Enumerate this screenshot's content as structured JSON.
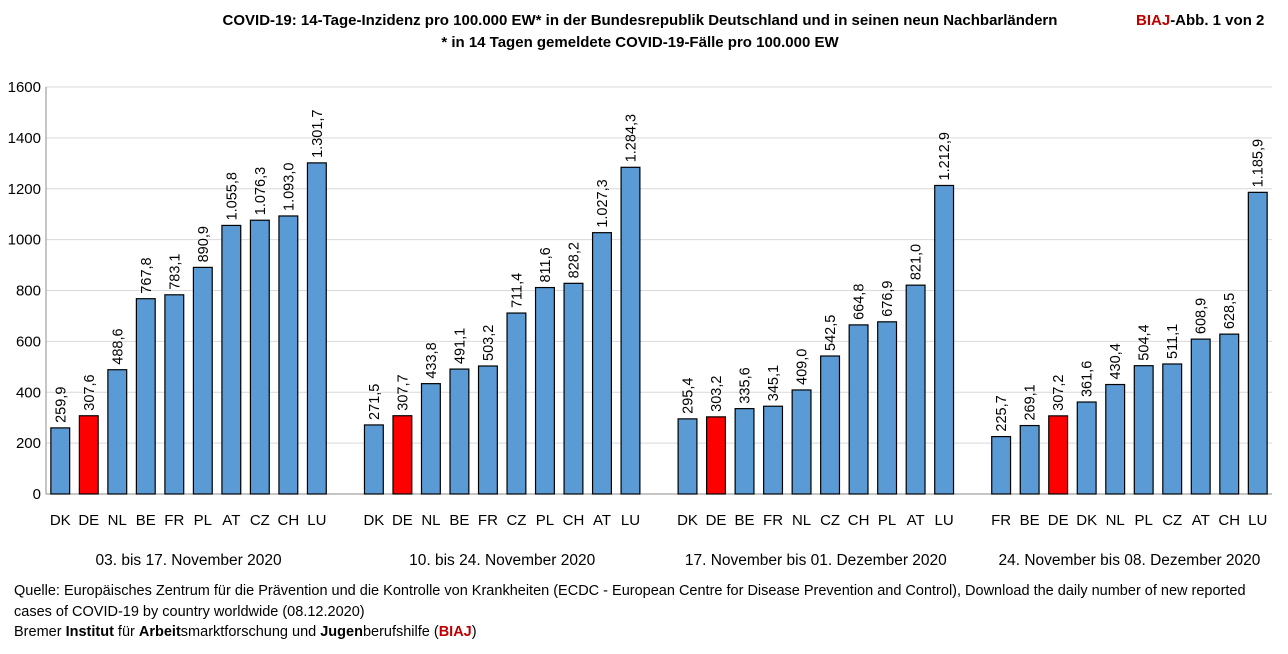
{
  "header": {
    "title_line1": "COVID-19: 14-Tage-Inzidenz pro 100.000 EW* in der Bundesrepublik Deutschland und in seinen neun Nachbarländern",
    "title_line2": "* in 14 Tagen gemeldete COVID-19-Fälle pro 100.000 EW",
    "badge_brand": "BIAJ",
    "badge_rest": "-Abb. 1 von 2"
  },
  "colors": {
    "bar": "#5b9bd5",
    "highlight": "#ff0000",
    "brand": "#c00000"
  },
  "chart_data": {
    "type": "bar",
    "title": "COVID-19: 14-Tage-Inzidenz pro 100.000 EW* in der Bundesrepublik Deutschland und in seinen neun Nachbarländern",
    "ylim": [
      0,
      1600
    ],
    "yticks": [
      0,
      200,
      400,
      600,
      800,
      1000,
      1200,
      1400,
      1600
    ],
    "grid": true,
    "highlight_category": "DE",
    "groups": [
      {
        "period": "03. bis 17. November 2020",
        "categories": [
          "DK",
          "DE",
          "NL",
          "BE",
          "FR",
          "PL",
          "AT",
          "CZ",
          "CH",
          "LU"
        ],
        "values": [
          259.9,
          307.6,
          488.6,
          767.8,
          783.1,
          890.9,
          1055.8,
          1076.3,
          1093.0,
          1301.7
        ],
        "labels": [
          "259,9",
          "307,6",
          "488,6",
          "767,8",
          "783,1",
          "890,9",
          "1.055,8",
          "1.076,3",
          "1.093,0",
          "1.301,7"
        ]
      },
      {
        "period": "10. bis 24. November 2020",
        "categories": [
          "DK",
          "DE",
          "NL",
          "BE",
          "FR",
          "CZ",
          "PL",
          "CH",
          "AT",
          "LU"
        ],
        "values": [
          271.5,
          307.7,
          433.8,
          491.1,
          503.2,
          711.4,
          811.6,
          828.2,
          1027.3,
          1284.3
        ],
        "labels": [
          "271,5",
          "307,7",
          "433,8",
          "491,1",
          "503,2",
          "711,4",
          "811,6",
          "828,2",
          "1.027,3",
          "1.284,3"
        ]
      },
      {
        "period": "17. November bis 01. Dezember 2020",
        "categories": [
          "DK",
          "DE",
          "BE",
          "FR",
          "NL",
          "CZ",
          "CH",
          "PL",
          "AT",
          "LU"
        ],
        "values": [
          295.4,
          303.2,
          335.6,
          345.1,
          409.0,
          542.5,
          664.8,
          676.9,
          821.0,
          1212.9
        ],
        "labels": [
          "295,4",
          "303,2",
          "335,6",
          "345,1",
          "409,0",
          "542,5",
          "664,8",
          "676,9",
          "821,0",
          "1.212,9"
        ]
      },
      {
        "period": "24. November bis 08. Dezember 2020",
        "categories": [
          "FR",
          "BE",
          "DE",
          "DK",
          "NL",
          "PL",
          "CZ",
          "AT",
          "CH",
          "LU"
        ],
        "values": [
          225.7,
          269.1,
          307.2,
          361.6,
          430.4,
          504.4,
          511.1,
          608.9,
          628.5,
          1185.9
        ],
        "labels": [
          "225,7",
          "269,1",
          "307,2",
          "361,6",
          "430,4",
          "504,4",
          "511,1",
          "608,9",
          "628,5",
          "1.185,9"
        ]
      }
    ]
  },
  "footer": {
    "source": "Quelle: Europäisches Zentrum für die Prävention und die Kontrolle von Krankheiten (ECDC - European Centre for Disease Prevention and Control), Download the daily number of new reported cases of COVID-19 by country worldwide (08.12.2020)",
    "org_parts": [
      {
        "text": "Bremer ",
        "bold": false
      },
      {
        "text": "Institut",
        "bold": true
      },
      {
        "text": " für ",
        "bold": false
      },
      {
        "text": "Arbeit",
        "bold": true
      },
      {
        "text": "smarktforschung und ",
        "bold": false
      },
      {
        "text": "Jugen",
        "bold": true
      },
      {
        "text": "berufshilfe (",
        "bold": false
      },
      {
        "text": "BIAJ",
        "bold": true,
        "brand": true
      },
      {
        "text": ")",
        "bold": false
      }
    ]
  }
}
